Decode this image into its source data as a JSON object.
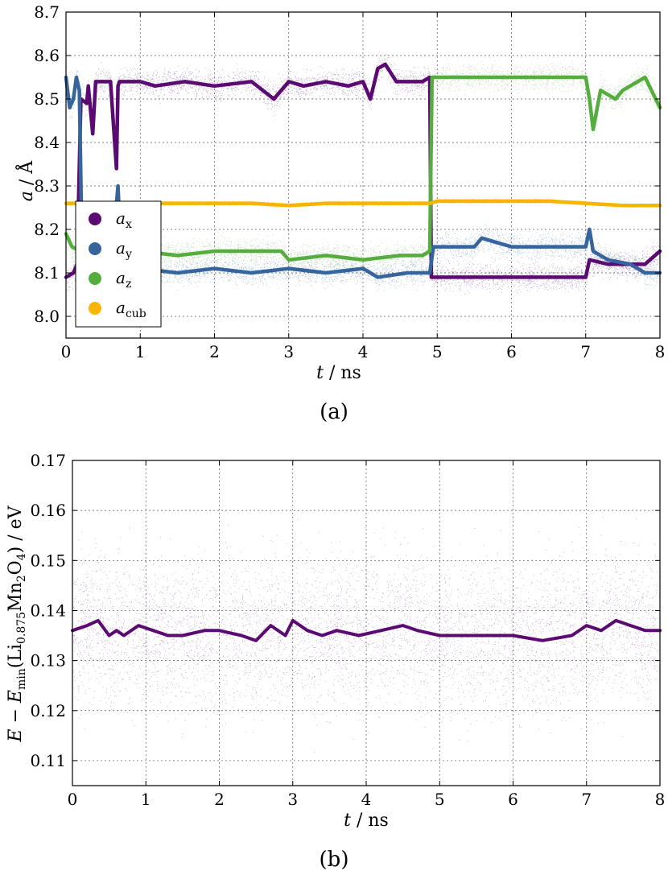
{
  "chart_data": [
    {
      "type": "scatter",
      "panel_caption": "(a)",
      "xlabel": "t",
      "xunit": "ns",
      "ylabel": "a",
      "yunit": "Å",
      "xlim": [
        0,
        8
      ],
      "ylim": [
        7.95,
        8.7
      ],
      "xticks": [
        "0",
        "1",
        "2",
        "3",
        "4",
        "5",
        "6",
        "7",
        "8"
      ],
      "yticks": [
        "8.0",
        "8.1",
        "8.2",
        "8.3",
        "8.4",
        "8.5",
        "8.6",
        "8.7"
      ],
      "grid": true,
      "legend_position": "lower-left",
      "series": [
        {
          "name": "a_x",
          "label_main": "a",
          "label_sub": "x",
          "color": "#5b0a72",
          "scatter_spread": 0.06,
          "x": [
            0,
            0.1,
            0.15,
            0.2,
            0.28,
            0.3,
            0.36,
            0.4,
            0.6,
            0.68,
            0.7,
            0.72,
            1.0,
            1.2,
            1.6,
            2.0,
            2.5,
            2.8,
            3.0,
            3.2,
            3.5,
            3.8,
            4.0,
            4.1,
            4.2,
            4.3,
            4.45,
            4.6,
            4.8,
            4.9,
            4.92,
            5.0,
            5.5,
            6.0,
            6.5,
            7.0,
            7.05,
            7.3,
            7.6,
            7.8,
            8.0
          ],
          "y": [
            8.09,
            8.1,
            8.12,
            8.5,
            8.49,
            8.53,
            8.42,
            8.54,
            8.54,
            8.34,
            8.53,
            8.54,
            8.54,
            8.53,
            8.54,
            8.53,
            8.54,
            8.5,
            8.54,
            8.53,
            8.54,
            8.53,
            8.54,
            8.5,
            8.57,
            8.58,
            8.54,
            8.54,
            8.54,
            8.55,
            8.09,
            8.09,
            8.09,
            8.09,
            8.09,
            8.09,
            8.13,
            8.12,
            8.12,
            8.12,
            8.15
          ]
        },
        {
          "name": "a_y",
          "label_main": "a",
          "label_sub": "y",
          "color": "#35659c",
          "scatter_spread": 0.06,
          "x": [
            0,
            0.05,
            0.1,
            0.14,
            0.18,
            0.22,
            0.3,
            0.6,
            0.7,
            0.75,
            1.0,
            1.5,
            2.0,
            2.5,
            3.0,
            3.5,
            4.0,
            4.2,
            4.6,
            4.9,
            4.95,
            5.5,
            5.6,
            6.0,
            6.5,
            7.0,
            7.05,
            7.1,
            7.3,
            7.6,
            7.8,
            8.0
          ],
          "y": [
            8.55,
            8.48,
            8.5,
            8.55,
            8.52,
            8.11,
            8.1,
            8.1,
            8.3,
            8.11,
            8.11,
            8.1,
            8.11,
            8.1,
            8.11,
            8.1,
            8.11,
            8.09,
            8.1,
            8.1,
            8.16,
            8.16,
            8.18,
            8.16,
            8.16,
            8.16,
            8.2,
            8.15,
            8.13,
            8.12,
            8.1,
            8.1
          ]
        },
        {
          "name": "a_z",
          "label_main": "a",
          "label_sub": "z",
          "color": "#55ad3e",
          "scatter_spread": 0.06,
          "x": [
            0,
            0.08,
            0.2,
            0.5,
            1.0,
            1.5,
            2.0,
            2.5,
            2.9,
            3.0,
            3.5,
            4.0,
            4.5,
            4.8,
            4.9,
            4.93,
            5.0,
            5.5,
            6.0,
            6.5,
            7.0,
            7.05,
            7.1,
            7.2,
            7.4,
            7.5,
            7.8,
            8.0
          ],
          "y": [
            8.19,
            8.16,
            8.15,
            8.15,
            8.15,
            8.14,
            8.15,
            8.15,
            8.15,
            8.13,
            8.14,
            8.13,
            8.14,
            8.14,
            8.15,
            8.55,
            8.55,
            8.55,
            8.55,
            8.55,
            8.55,
            8.5,
            8.43,
            8.52,
            8.5,
            8.52,
            8.55,
            8.48
          ]
        },
        {
          "name": "a_cub",
          "label_main": "a",
          "label_sub": "cub",
          "color": "#f7b500",
          "scatter_spread": 0.01,
          "x": [
            0,
            0.5,
            1.0,
            1.5,
            2.0,
            2.5,
            3.0,
            3.5,
            4.0,
            4.5,
            4.9,
            5.0,
            5.5,
            6.0,
            6.5,
            7.0,
            7.5,
            8.0
          ],
          "y": [
            8.26,
            8.26,
            8.26,
            8.26,
            8.26,
            8.26,
            8.255,
            8.26,
            8.26,
            8.26,
            8.26,
            8.265,
            8.265,
            8.265,
            8.265,
            8.26,
            8.255,
            8.255
          ]
        }
      ]
    },
    {
      "type": "scatter",
      "panel_caption": "(b)",
      "xlabel": "t",
      "xunit": "ns",
      "ylabel": "E − E_min(Li_0.875Mn_2O_4)",
      "ylabel_parts": {
        "e": "E",
        "minus": " − ",
        "emin": "E",
        "min_sub": "min",
        "lparen": "(Li",
        "li_sub": "0.875",
        "mn": "Mn",
        "mn_sub": "2",
        "o": "O",
        "o_sub": "4",
        "rparen": ")"
      },
      "yunit": "eV",
      "xlim": [
        0,
        8
      ],
      "ylim": [
        0.105,
        0.17
      ],
      "xticks": [
        "0",
        "1",
        "2",
        "3",
        "4",
        "5",
        "6",
        "7",
        "8"
      ],
      "yticks": [
        "0.11",
        "0.12",
        "0.13",
        "0.14",
        "0.15",
        "0.16",
        "0.17"
      ],
      "grid": true,
      "series": [
        {
          "name": "E",
          "color": "#5b0a72",
          "scatter_spread": 0.03,
          "x": [
            0,
            0.2,
            0.35,
            0.5,
            0.6,
            0.7,
            0.9,
            1.1,
            1.3,
            1.5,
            1.8,
            2.0,
            2.3,
            2.5,
            2.7,
            2.9,
            3.0,
            3.2,
            3.4,
            3.6,
            3.9,
            4.2,
            4.5,
            4.7,
            5.0,
            5.5,
            6.0,
            6.4,
            6.8,
            7.0,
            7.2,
            7.4,
            7.6,
            7.8,
            8.0
          ],
          "y": [
            0.136,
            0.137,
            0.138,
            0.135,
            0.136,
            0.135,
            0.137,
            0.136,
            0.135,
            0.135,
            0.136,
            0.136,
            0.135,
            0.134,
            0.137,
            0.135,
            0.138,
            0.136,
            0.135,
            0.136,
            0.135,
            0.136,
            0.137,
            0.136,
            0.135,
            0.135,
            0.135,
            0.134,
            0.135,
            0.137,
            0.136,
            0.138,
            0.137,
            0.136,
            0.136
          ]
        }
      ]
    }
  ]
}
